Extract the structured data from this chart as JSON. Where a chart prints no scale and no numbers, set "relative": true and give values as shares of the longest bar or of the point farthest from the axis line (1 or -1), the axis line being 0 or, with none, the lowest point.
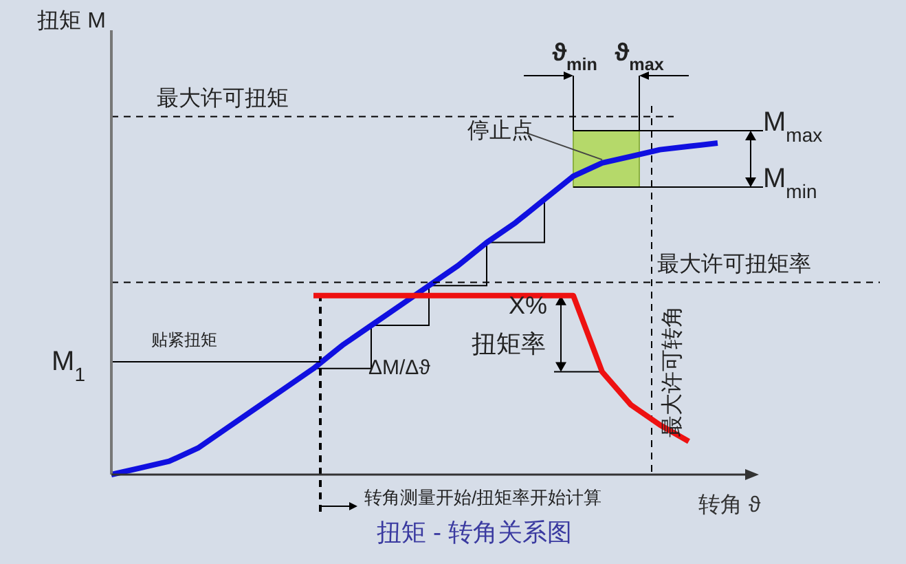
{
  "chart_data": {
    "type": "line",
    "title": "扭矩 - 转角关系图",
    "xlabel": "转角 ϑ",
    "relative": true,
    "categories": [
      null,
      null,
      null,
      null,
      null,
      null,
      null,
      null,
      null,
      null,
      null,
      null,
      null,
      null,
      null,
      null,
      null,
      null,
      null,
      null,
      null,
      null
    ],
    "series": [
      {
        "color": "#1010e0",
        "values": [
          0,
          0.02,
          0.04,
          0.08,
          0.14,
          0.2,
          0.26,
          0.32,
          0.39,
          0.45,
          0.51,
          0.57,
          0.63,
          0.7,
          0.76,
          0.83,
          0.9,
          0.94,
          0.96,
          0.98,
          0.99,
          1
        ]
      },
      {
        "color": "#ee1111",
        "values": [
          null,
          null,
          null,
          null,
          null,
          null,
          null,
          0.54,
          0.54,
          0.54,
          0.54,
          0.54,
          0.54,
          0.54,
          0.54,
          0.54,
          0.54,
          0.31,
          0.21,
          0.15,
          0.1,
          null
        ]
      }
    ],
    "ref_lines": [
      {
        "axis": "y",
        "value": 1.08,
        "label": "最大许可扭矩",
        "line_style": "dashed"
      },
      {
        "axis": "y",
        "value": 0.58,
        "label": "最大许可扭矩率",
        "line_style": "dashed"
      },
      {
        "axis": "y",
        "value": 0.34,
        "label": "M$_{1}$",
        "line_style": "solid"
      }
    ],
    "annotations": [
      "扭矩 M",
      "最大许可转角",
      "转角测量开始/扭矩率开始计算",
      "停止点",
      "X%",
      "扭矩率",
      "ΔM/Δϑ",
      "ϑ$_{min}$",
      "ϑ$_{max}$",
      "M$_{max}$",
      "M$_{min}$",
      "贴紧扭矩"
    ]
  }
}
